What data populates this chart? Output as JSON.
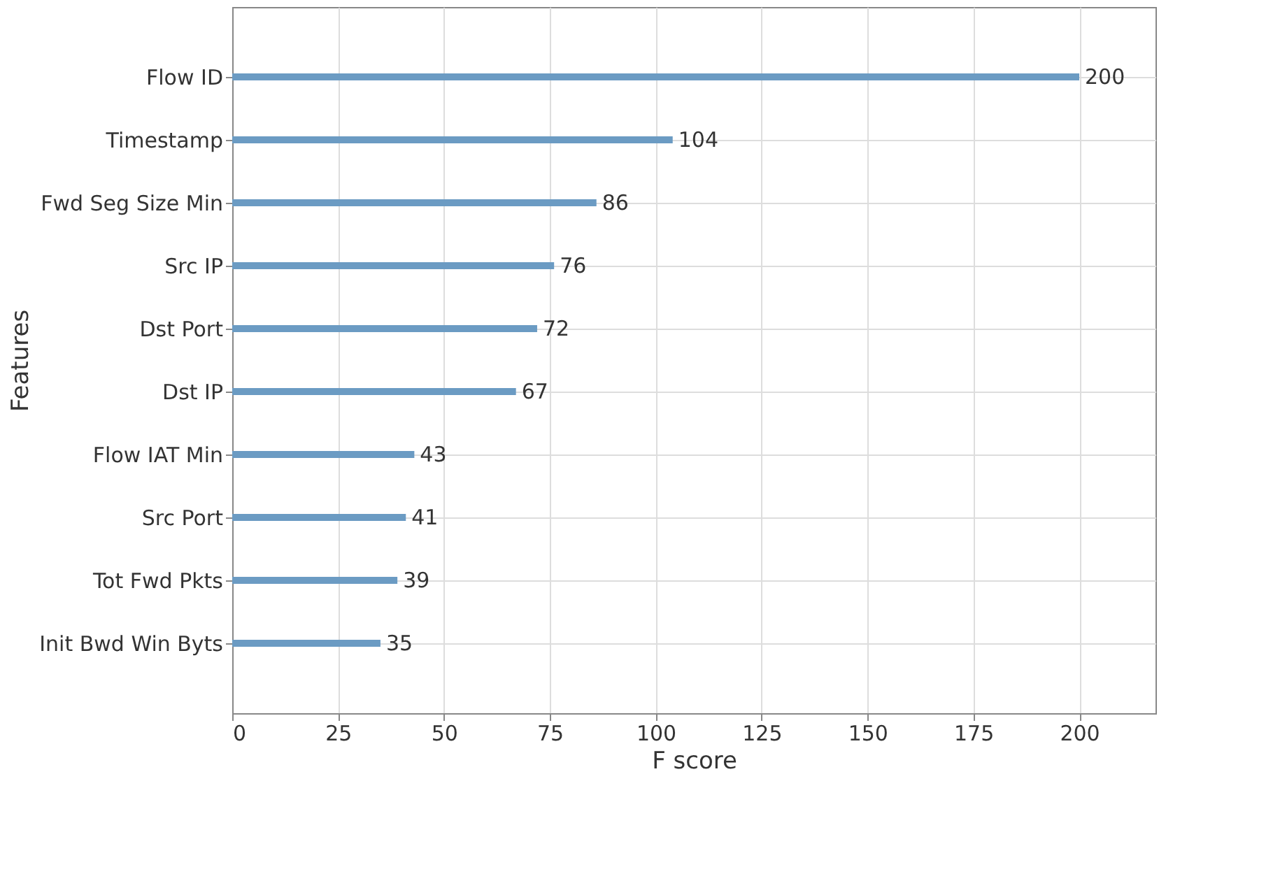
{
  "chart_data": {
    "type": "bar",
    "orientation": "horizontal",
    "xlabel": "F score",
    "ylabel": "Features",
    "categories": [
      "Flow ID",
      "Timestamp",
      "Fwd Seg Size Min",
      "Src IP",
      "Dst Port",
      "Dst IP",
      "Flow IAT Min",
      "Src Port",
      "Tot Fwd Pkts",
      "Init Bwd Win Byts"
    ],
    "values": [
      200,
      104,
      86,
      76,
      72,
      67,
      43,
      41,
      39,
      35
    ],
    "color": "#6b9bc3",
    "xlim": [
      0,
      218
    ],
    "xticks": [
      0,
      25,
      50,
      75,
      100,
      125,
      150,
      175,
      200
    ],
    "grid": true,
    "data_labels": true
  }
}
